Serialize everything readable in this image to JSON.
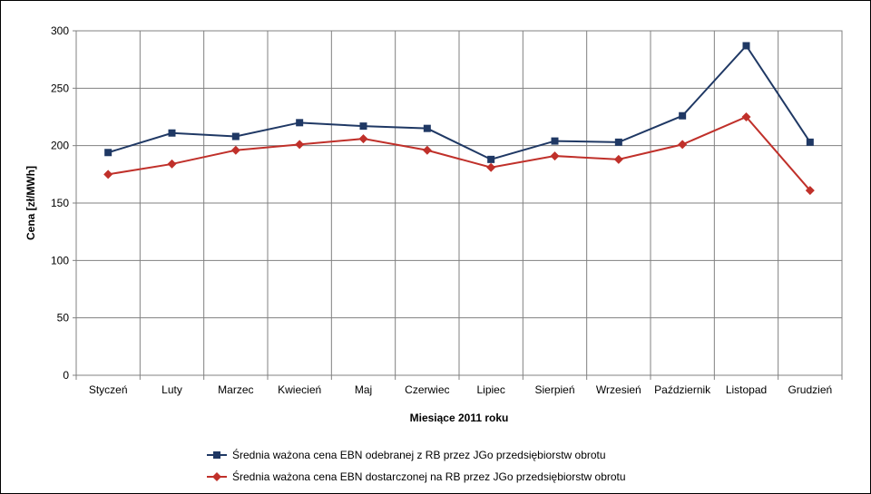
{
  "chart_data": {
    "type": "line",
    "title": "",
    "xlabel": "Miesiące 2011  roku",
    "ylabel": "Cena [zł/MWh]",
    "ylim": [
      0,
      300
    ],
    "yticks": [
      0,
      50,
      100,
      150,
      200,
      250,
      300
    ],
    "grid": true,
    "legend_position": "bottom",
    "categories": [
      "Styczeń",
      "Luty",
      "Marzec",
      "Kwiecień",
      "Maj",
      "Czerwiec",
      "Lipiec",
      "Sierpień",
      "Wrzesień",
      "Październik",
      "Listopad",
      "Grudzień"
    ],
    "series": [
      {
        "name": "Średnia ważona cena EBN odebranej z RB przez JGo przedsiębiorstw obrotu",
        "color": "#1f3864",
        "marker": "square",
        "values": [
          194,
          211,
          208,
          220,
          217,
          215,
          188,
          204,
          203,
          226,
          287,
          203
        ]
      },
      {
        "name": "Średnia ważona cena EBN dostarczonej na RB przez JGo przedsiębiorstw obrotu",
        "color": "#c0302a",
        "marker": "diamond",
        "values": [
          175,
          184,
          196,
          201,
          206,
          196,
          181,
          191,
          188,
          201,
          225,
          161
        ]
      }
    ]
  }
}
